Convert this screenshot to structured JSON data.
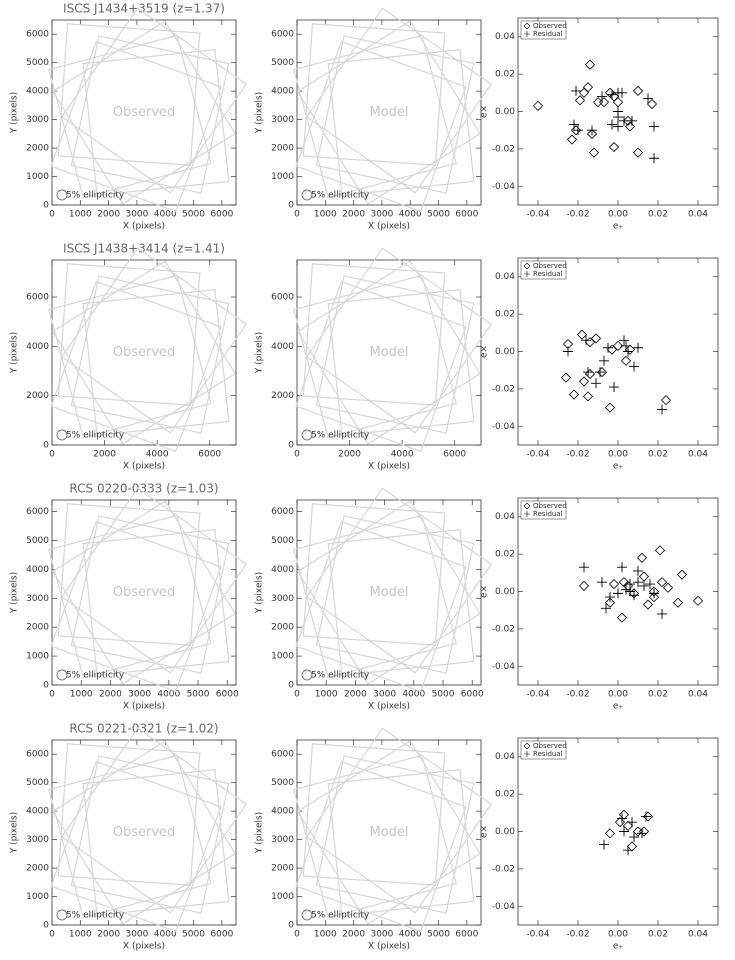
{
  "chart_data": [
    {
      "type": "field",
      "title": "ISCS J1434+3519  (z=1.37)",
      "annotation": "Observed",
      "legend": "5% ellipticity",
      "xlabel": "X (pixels)",
      "ylabel": "Y (pixels)",
      "xlim": [
        0,
        6500
      ],
      "ylim": [
        0,
        6500
      ],
      "xticks": [
        0,
        1000,
        2000,
        3000,
        4000,
        5000,
        6000
      ],
      "yticks": [
        0,
        1000,
        2000,
        3000,
        4000,
        5000,
        6000
      ]
    },
    {
      "type": "field",
      "annotation": "Model",
      "legend": "5% ellipticity",
      "xlabel": "X (pixels)",
      "ylabel": "Y (pixels)",
      "xlim": [
        0,
        6500
      ],
      "ylim": [
        0,
        6500
      ],
      "xticks": [
        0,
        1000,
        2000,
        3000,
        4000,
        5000,
        6000
      ],
      "yticks": [
        0,
        1000,
        2000,
        3000,
        4000,
        5000,
        6000
      ]
    },
    {
      "type": "scatter",
      "xlabel": "e₊",
      "ylabel": "e×",
      "legend": "upper left",
      "xlim": [
        -0.05,
        0.05
      ],
      "ylim": [
        -0.05,
        0.05
      ],
      "xticks": [
        -0.04,
        -0.02,
        {
          "value": 0,
          "label": "0.00"
        },
        0.02,
        0.04
      ],
      "yticks": [
        -0.04,
        -0.02,
        {
          "value": 0,
          "label": "0.00"
        },
        0.02,
        0.04
      ],
      "series": [
        {
          "name": "Observed",
          "marker": "diamond",
          "color": "#000000",
          "x": [
            -0.04,
            -0.014,
            -0.015,
            -0.017,
            -0.019,
            -0.023,
            -0.021,
            -0.013,
            -0.012,
            -0.01,
            -0.007,
            -0.004,
            0,
            -0.002,
            0.005,
            0.006,
            0.01,
            0.01,
            0.017,
            -0.002
          ],
          "y": [
            0.003,
            0.025,
            0.013,
            0.01,
            0.006,
            -0.015,
            -0.01,
            -0.012,
            -0.022,
            0.005,
            0.005,
            0.01,
            0.005,
            -0.019,
            -0.005,
            -0.008,
            -0.022,
            0.011,
            0.004,
            0.008
          ]
        },
        {
          "name": "Residual",
          "marker": "plus",
          "color": "#000000",
          "x": [
            -0.021,
            -0.022,
            -0.02,
            -0.013,
            -0.008,
            -0.003,
            0,
            0.002,
            0,
            0,
            0.003,
            0.007,
            0.015,
            0.018,
            0.018,
            -0.003,
            0
          ],
          "y": [
            0.011,
            -0.007,
            -0.01,
            -0.01,
            0.008,
            0.009,
            0.01,
            0.01,
            -0.003,
            -0.008,
            -0.005,
            -0.005,
            0.007,
            -0.008,
            -0.025,
            -0.007,
            0
          ]
        }
      ]
    },
    {
      "type": "field",
      "title": "ISCS J1438+3414  (z=1.41)",
      "annotation": "Observed",
      "legend": "5% ellipticity",
      "xlabel": "X (pixels)",
      "ylabel": "Y (pixels)",
      "xlim": [
        0,
        7000
      ],
      "ylim": [
        0,
        7500
      ],
      "xticks": [
        0,
        2000,
        4000,
        6000
      ],
      "yticks": [
        0,
        2000,
        4000,
        6000
      ]
    },
    {
      "type": "field",
      "annotation": "Model",
      "legend": "5% ellipticity",
      "xlabel": "X (pixels)",
      "ylabel": "Y (pixels)",
      "xlim": [
        0,
        7000
      ],
      "ylim": [
        0,
        7500
      ],
      "xticks": [
        0,
        2000,
        4000,
        6000
      ],
      "yticks": [
        0,
        2000,
        4000,
        6000
      ]
    },
    {
      "type": "scatter",
      "xlabel": "e₊",
      "ylabel": "e×",
      "legend": "upper left",
      "xlim": [
        -0.05,
        0.05
      ],
      "ylim": [
        -0.05,
        0.05
      ],
      "xticks": [
        -0.04,
        -0.02,
        {
          "value": 0,
          "label": "0.00"
        },
        0.02,
        0.04
      ],
      "yticks": [
        -0.04,
        -0.02,
        {
          "value": 0,
          "label": "0.00"
        },
        0.02,
        0.04
      ],
      "series": [
        {
          "name": "Observed",
          "marker": "diamond",
          "color": "#000000",
          "x": [
            -0.026,
            -0.025,
            -0.022,
            -0.018,
            -0.017,
            -0.015,
            -0.014,
            -0.011,
            -0.008,
            -0.004,
            -0.003,
            0,
            0.004,
            0.006,
            0.024,
            -0.014
          ],
          "y": [
            -0.014,
            0.004,
            -0.023,
            0.009,
            -0.016,
            -0.024,
            0.005,
            0.007,
            -0.011,
            -0.03,
            0.001,
            0.003,
            -0.005,
            0.001,
            -0.026,
            -0.012
          ]
        },
        {
          "name": "Residual",
          "marker": "plus",
          "color": "#000000",
          "x": [
            -0.025,
            -0.016,
            -0.015,
            -0.011,
            -0.009,
            -0.007,
            -0.005,
            -0.002,
            0.003,
            0.004,
            0.005,
            0.008,
            0.01,
            0.022
          ],
          "y": [
            0,
            0.006,
            -0.011,
            -0.017,
            -0.011,
            -0.005,
            0.002,
            -0.019,
            0.006,
            0.003,
            0,
            -0.008,
            0.002,
            -0.031
          ]
        }
      ]
    },
    {
      "type": "field",
      "title": "RCS 0220-0333  (z=1.03)",
      "annotation": "Observed",
      "legend": "5% ellipticity",
      "xlabel": "X (pixels)",
      "ylabel": "Y (pixels)",
      "xlim": [
        0,
        6300
      ],
      "ylim": [
        0,
        6400
      ],
      "xticks": [
        0,
        1000,
        2000,
        3000,
        4000,
        5000,
        6000
      ],
      "yticks": [
        0,
        1000,
        2000,
        3000,
        4000,
        5000,
        6000
      ]
    },
    {
      "type": "field",
      "annotation": "Model",
      "legend": "5% ellipticity",
      "xlabel": "X (pixels)",
      "ylabel": "Y (pixels)",
      "xlim": [
        0,
        6300
      ],
      "ylim": [
        0,
        6400
      ],
      "xticks": [
        0,
        1000,
        2000,
        3000,
        4000,
        5000,
        6000
      ],
      "yticks": [
        0,
        1000,
        2000,
        3000,
        4000,
        5000,
        6000
      ]
    },
    {
      "type": "scatter",
      "xlabel": "e₊",
      "ylabel": "e×",
      "legend": "upper left",
      "xlim": [
        -0.05,
        0.05
      ],
      "ylim": [
        -0.05,
        0.05
      ],
      "xticks": [
        -0.04,
        -0.02,
        {
          "value": 0,
          "label": "0.00"
        },
        0.02,
        0.04
      ],
      "yticks": [
        -0.04,
        -0.02,
        {
          "value": 0,
          "label": "0.00"
        },
        0.02,
        0.04
      ],
      "series": [
        {
          "name": "Observed",
          "marker": "diamond",
          "color": "#000000",
          "x": [
            -0.017,
            -0.004,
            -0.002,
            0.002,
            0.003,
            0.005,
            0.008,
            0.012,
            0.015,
            0.018,
            0.021,
            0.022,
            0.025,
            0.03,
            0.032,
            0.04,
            0.013,
            0.018
          ],
          "y": [
            0.003,
            -0.006,
            0.004,
            -0.014,
            0.005,
            0.003,
            -0.001,
            0.018,
            -0.007,
            0,
            0.022,
            0.005,
            0.002,
            -0.006,
            0.009,
            -0.005,
            0.008,
            -0.003
          ]
        },
        {
          "name": "Residual",
          "marker": "plus",
          "color": "#000000",
          "x": [
            -0.017,
            -0.008,
            -0.006,
            -0.004,
            0,
            0.002,
            0.004,
            0.006,
            0.008,
            0.01,
            0.013,
            0.016,
            0.018,
            0.022,
            0.006,
            0.01
          ],
          "y": [
            0.013,
            0.005,
            -0.009,
            -0.003,
            -0.001,
            0.013,
            0.001,
            0.004,
            -0.002,
            0.011,
            0.003,
            0.004,
            -0.001,
            -0.012,
            0,
            0.005
          ]
        }
      ]
    },
    {
      "type": "field",
      "title": "RCS 0221-0321  (z=1.02)",
      "annotation": "Observed",
      "legend": "5% ellipticity",
      "xlabel": "X (pixels)",
      "ylabel": "Y (pixels)",
      "xlim": [
        0,
        6500
      ],
      "ylim": [
        0,
        6500
      ],
      "xticks": [
        0,
        1000,
        2000,
        3000,
        4000,
        5000,
        6000
      ],
      "yticks": [
        0,
        1000,
        2000,
        3000,
        4000,
        5000,
        6000
      ]
    },
    {
      "type": "field",
      "annotation": "Model",
      "legend": "5% ellipticity",
      "xlabel": "X (pixels)",
      "ylabel": "Y (pixels)",
      "xlim": [
        0,
        6500
      ],
      "ylim": [
        0,
        6500
      ],
      "xticks": [
        0,
        1000,
        2000,
        3000,
        4000,
        5000,
        6000
      ],
      "yticks": [
        0,
        1000,
        2000,
        3000,
        4000,
        5000,
        6000
      ]
    },
    {
      "type": "scatter",
      "xlabel": "e₊",
      "ylabel": "e×",
      "legend": "upper left",
      "xlim": [
        -0.05,
        0.05
      ],
      "ylim": [
        -0.05,
        0.05
      ],
      "xticks": [
        -0.04,
        -0.02,
        {
          "value": 0,
          "label": "0.00"
        },
        0.02,
        0.04
      ],
      "yticks": [
        -0.04,
        -0.02,
        {
          "value": 0,
          "label": "0.00"
        },
        0.02,
        0.04
      ],
      "series": [
        {
          "name": "Observed",
          "marker": "diamond",
          "color": "#000000",
          "x": [
            -0.004,
            0.003,
            0.005,
            0.007,
            0.01,
            0.013,
            0.015,
            0.001
          ],
          "y": [
            -0.001,
            0.009,
            0.003,
            -0.008,
            0,
            0,
            0.008,
            0.005
          ]
        },
        {
          "name": "Residual",
          "marker": "plus",
          "color": "#000000",
          "x": [
            -0.007,
            0.002,
            0.003,
            0.005,
            0.007,
            0.008,
            0.014,
            0.012
          ],
          "y": [
            -0.007,
            0.007,
            0,
            -0.01,
            0.005,
            -0.003,
            0.008,
            -0.001
          ]
        }
      ]
    }
  ]
}
